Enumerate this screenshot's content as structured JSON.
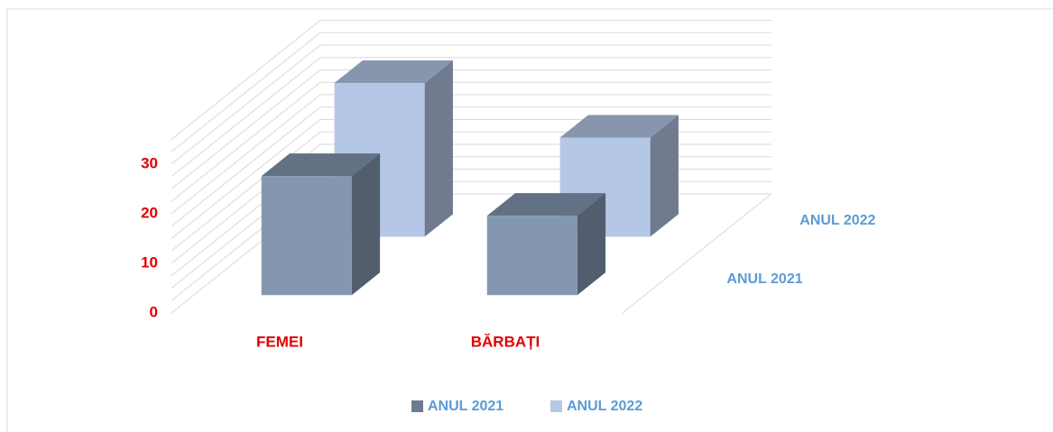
{
  "chart_data": {
    "type": "bar3d",
    "categories": [
      "FEMEI",
      "BĂRBAȚI"
    ],
    "series": [
      {
        "name": "ANUL 2021",
        "color": "#8497b0",
        "values": [
          24,
          16
        ]
      },
      {
        "name": "ANUL 2022",
        "color": "#b4c7e7",
        "values": [
          31,
          20
        ]
      }
    ],
    "ylim": [
      0,
      35
    ],
    "yticks": [
      0,
      10,
      20,
      30
    ],
    "minor_yticks": [
      0,
      2.5,
      5,
      7.5,
      10,
      12.5,
      15,
      17.5,
      20,
      22.5,
      25,
      27.5,
      30,
      32.5,
      35
    ],
    "grid": true,
    "legend": "bottom"
  }
}
